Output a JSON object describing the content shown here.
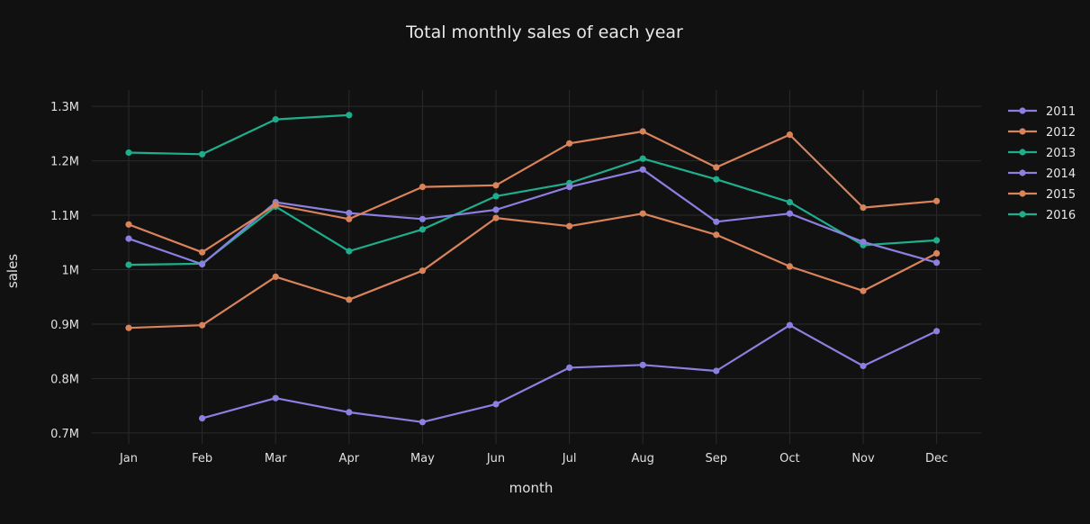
{
  "chart_data": {
    "type": "line",
    "title": "Total monthly sales of each year",
    "xlabel": "month",
    "ylabel": "sales",
    "categories": [
      "Jan",
      "Feb",
      "Mar",
      "Apr",
      "May",
      "Jun",
      "Jul",
      "Aug",
      "Sep",
      "Oct",
      "Nov",
      "Dec"
    ],
    "ylim": [
      0.68,
      1.33
    ],
    "yticks": [
      {
        "value": 0.7,
        "label": "0.7M"
      },
      {
        "value": 0.8,
        "label": "0.8M"
      },
      {
        "value": 0.9,
        "label": "0.9M"
      },
      {
        "value": 1.0,
        "label": "1M"
      },
      {
        "value": 1.1,
        "label": "1.1M"
      },
      {
        "value": 1.2,
        "label": "1.2M"
      },
      {
        "value": 1.3,
        "label": "1.3M"
      }
    ],
    "grid": true,
    "legend_position": "top-right",
    "series": [
      {
        "name": "2011",
        "color": "#8b7fe0",
        "values": [
          null,
          0.727,
          0.764,
          0.738,
          0.72,
          0.753,
          0.82,
          0.825,
          0.814,
          0.898,
          0.823,
          0.887
        ]
      },
      {
        "name": "2012",
        "color": "#d9835a",
        "values": [
          0.893,
          0.898,
          0.987,
          0.945,
          0.998,
          1.095,
          1.08,
          1.103,
          1.064,
          1.006,
          0.961,
          1.03
        ]
      },
      {
        "name": "2013",
        "color": "#1fae8c",
        "values": [
          1.009,
          1.011,
          1.116,
          1.034,
          1.074,
          1.135,
          1.159,
          1.204,
          1.166,
          1.124,
          1.045,
          1.054
        ]
      },
      {
        "name": "2014",
        "color": "#8b7fe0",
        "values": [
          1.057,
          1.01,
          1.124,
          1.104,
          1.093,
          1.11,
          1.152,
          1.184,
          1.088,
          1.103,
          1.051,
          1.013
        ]
      },
      {
        "name": "2015",
        "color": "#d9835a",
        "values": [
          1.083,
          1.032,
          1.119,
          1.093,
          1.152,
          1.155,
          1.232,
          1.254,
          1.188,
          1.248,
          1.114,
          1.126
        ]
      },
      {
        "name": "2016",
        "color": "#1fae8c",
        "values": [
          1.215,
          1.212,
          1.276,
          1.284,
          null,
          null,
          null,
          null,
          null,
          null,
          null,
          null
        ]
      }
    ]
  }
}
